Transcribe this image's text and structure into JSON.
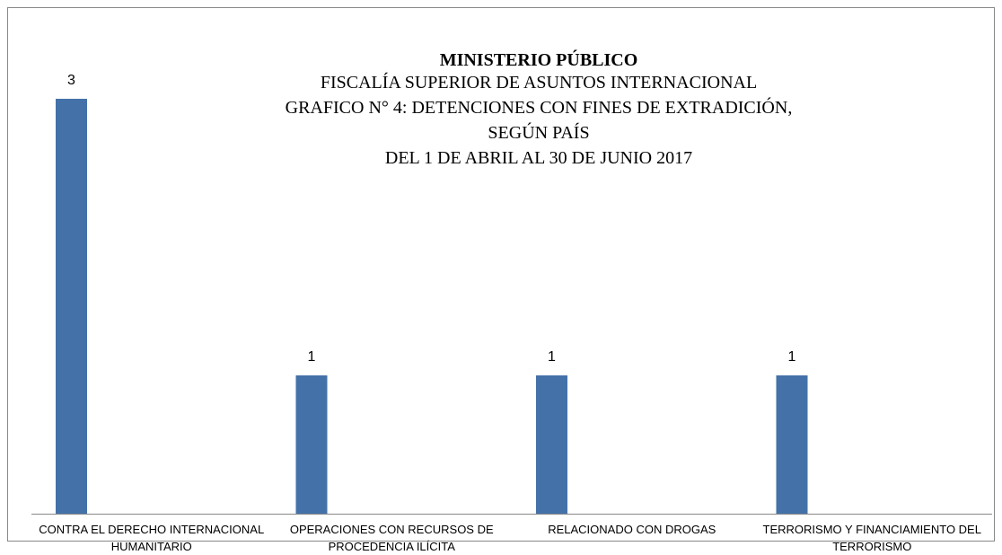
{
  "chart_data": {
    "type": "bar",
    "title": "MINISTERIO PÚBLICO",
    "subtitle": [
      "FISCALÍA SUPERIOR DE ASUNTOS INTERNACIONAL",
      "GRAFICO N° 4:  DETENCIONES CON FINES DE EXTRADICIÓN,",
      "SEGÚN PAÍS",
      "DEL 1 DE ABRIL AL 30 DE JUNIO 2017"
    ],
    "categories": [
      "CONTRA EL DERECHO INTERNACIONAL HUMANITARIO",
      "OPERACIONES CON RECURSOS DE PROCEDENCIA ILÍCITA",
      "RELACIONADO CON DROGAS",
      "TERRORISMO Y FINANCIAMIENTO DEL TERRORISMO"
    ],
    "values": [
      3,
      1,
      1,
      1
    ],
    "color": "#4472a8",
    "ylim": [
      0,
      3
    ]
  }
}
